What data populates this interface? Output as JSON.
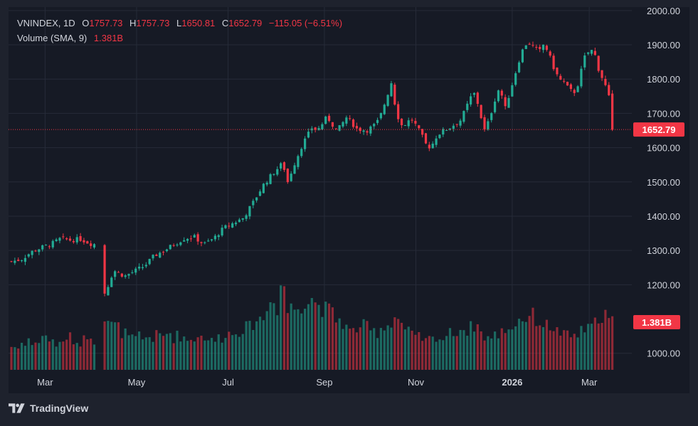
{
  "legend": {
    "symbol": "VNINDEX",
    "interval": "1D",
    "open_label": "O",
    "open": "1757.73",
    "high_label": "H",
    "high": "1757.73",
    "low_label": "L",
    "low": "1650.81",
    "close_label": "C",
    "close": "1652.79",
    "change": "−115.05 (−6.51%)",
    "volume_label": "Volume (SMA, 9)",
    "volume": "1.381B"
  },
  "badges": {
    "last_price": "1652.79",
    "last_volume": "1.381B"
  },
  "footer": {
    "brand": "TradingView"
  },
  "colors": {
    "up": "#22ab94",
    "down": "#f23645",
    "background": "#161a25",
    "outer": "#1e222d",
    "grid": "#262b38",
    "text": "#d1d4dc",
    "badge": "#f23645"
  },
  "chart_data": {
    "type": "candlestick",
    "title": "VNINDEX, 1D",
    "price_axis": {
      "range": [
        960,
        2010
      ],
      "ticks": [
        "2000.00",
        "1900.00",
        "1800.00",
        "1700.00",
        "1600.00",
        "1500.00",
        "1400.00",
        "1300.00",
        "1200.00",
        "1000.00"
      ]
    },
    "time_axis": {
      "range": [
        0,
        120
      ],
      "labels": [
        {
          "text": "Mar",
          "t": 7
        },
        {
          "text": "May",
          "t": 26
        },
        {
          "text": "Jul",
          "t": 45
        },
        {
          "text": "Sep",
          "t": 65
        },
        {
          "text": "Nov",
          "t": 84
        },
        {
          "text": "2026",
          "t": 104
        },
        {
          "text": "Mar",
          "t": 120
        }
      ]
    },
    "last_close": 1652.79,
    "series": [
      {
        "name": "VNINDEX",
        "description": "Approximate daily close path (t in trading-index units, y in index points)",
        "close_path": [
          {
            "t": 0,
            "y": 1268
          },
          {
            "t": 2,
            "y": 1274
          },
          {
            "t": 4,
            "y": 1295
          },
          {
            "t": 6,
            "y": 1308
          },
          {
            "t": 8,
            "y": 1318
          },
          {
            "t": 10,
            "y": 1335
          },
          {
            "t": 12,
            "y": 1330
          },
          {
            "t": 14,
            "y": 1333
          },
          {
            "t": 16,
            "y": 1320
          },
          {
            "t": 17,
            "y": 1318
          },
          {
            "t": 18,
            "y": 1275
          },
          {
            "t": 19,
            "y": 1165
          },
          {
            "t": 20,
            "y": 1220
          },
          {
            "t": 21,
            "y": 1240
          },
          {
            "t": 23,
            "y": 1225
          },
          {
            "t": 25,
            "y": 1240
          },
          {
            "t": 27,
            "y": 1255
          },
          {
            "t": 29,
            "y": 1285
          },
          {
            "t": 31,
            "y": 1300
          },
          {
            "t": 33,
            "y": 1318
          },
          {
            "t": 35,
            "y": 1335
          },
          {
            "t": 37,
            "y": 1340
          },
          {
            "t": 39,
            "y": 1318
          },
          {
            "t": 41,
            "y": 1335
          },
          {
            "t": 43,
            "y": 1365
          },
          {
            "t": 45,
            "y": 1380
          },
          {
            "t": 47,
            "y": 1395
          },
          {
            "t": 49,
            "y": 1440
          },
          {
            "t": 51,
            "y": 1490
          },
          {
            "t": 53,
            "y": 1525
          },
          {
            "t": 55,
            "y": 1555
          },
          {
            "t": 56,
            "y": 1500
          },
          {
            "t": 57,
            "y": 1540
          },
          {
            "t": 59,
            "y": 1610
          },
          {
            "t": 61,
            "y": 1660
          },
          {
            "t": 62,
            "y": 1650
          },
          {
            "t": 64,
            "y": 1690
          },
          {
            "t": 66,
            "y": 1648
          },
          {
            "t": 68,
            "y": 1690
          },
          {
            "t": 70,
            "y": 1655
          },
          {
            "t": 72,
            "y": 1650
          },
          {
            "t": 74,
            "y": 1670
          },
          {
            "t": 75,
            "y": 1700
          },
          {
            "t": 76,
            "y": 1745
          },
          {
            "t": 77,
            "y": 1790
          },
          {
            "t": 78,
            "y": 1705
          },
          {
            "t": 79,
            "y": 1665
          },
          {
            "t": 80,
            "y": 1670
          },
          {
            "t": 81,
            "y": 1685
          },
          {
            "t": 82,
            "y": 1665
          },
          {
            "t": 83,
            "y": 1640
          },
          {
            "t": 84,
            "y": 1610
          },
          {
            "t": 85,
            "y": 1600
          },
          {
            "t": 86,
            "y": 1630
          },
          {
            "t": 87,
            "y": 1645
          },
          {
            "t": 89,
            "y": 1660
          },
          {
            "t": 91,
            "y": 1680
          },
          {
            "t": 92,
            "y": 1710
          },
          {
            "t": 93,
            "y": 1745
          },
          {
            "t": 94,
            "y": 1760
          },
          {
            "t": 95,
            "y": 1700
          },
          {
            "t": 96,
            "y": 1645
          },
          {
            "t": 97,
            "y": 1690
          },
          {
            "t": 98,
            "y": 1740
          },
          {
            "t": 99,
            "y": 1780
          },
          {
            "t": 100,
            "y": 1710
          },
          {
            "t": 101,
            "y": 1760
          },
          {
            "t": 102,
            "y": 1810
          },
          {
            "t": 103,
            "y": 1860
          },
          {
            "t": 104,
            "y": 1900
          },
          {
            "t": 105,
            "y": 1905
          },
          {
            "t": 106,
            "y": 1890
          },
          {
            "t": 107,
            "y": 1880
          },
          {
            "t": 108,
            "y": 1905
          },
          {
            "t": 109,
            "y": 1870
          },
          {
            "t": 110,
            "y": 1830
          },
          {
            "t": 111,
            "y": 1800
          },
          {
            "t": 112,
            "y": 1790
          },
          {
            "t": 113,
            "y": 1770
          },
          {
            "t": 114,
            "y": 1760
          },
          {
            "t": 115,
            "y": 1790
          },
          {
            "t": 116,
            "y": 1860
          },
          {
            "t": 117,
            "y": 1880
          },
          {
            "t": 118,
            "y": 1885
          },
          {
            "t": 119,
            "y": 1830
          },
          {
            "t": 120,
            "y": 1795
          },
          {
            "t": 121,
            "y": 1757.73
          },
          {
            "t": 122,
            "y": 1652.79
          }
        ]
      },
      {
        "name": "Volume",
        "description": "Approximate daily volume in billions",
        "values": [
          0.6,
          0.55,
          0.7,
          0.8,
          0.65,
          0.75,
          0.9,
          0.7,
          0.8,
          0.65,
          0.7,
          0.85,
          0.75,
          0.7,
          0.8,
          0.9,
          0.75,
          1.2,
          1.4,
          1.3,
          1.15,
          1.1,
          0.95,
          0.85,
          0.8,
          0.9,
          0.75,
          0.85,
          0.8,
          0.9,
          0.85,
          0.95,
          0.8,
          0.9,
          0.85,
          0.75,
          0.8,
          0.9,
          0.85,
          0.8,
          0.75,
          0.85,
          0.8,
          0.95,
          0.9,
          1.0,
          1.05,
          1.1,
          1.2,
          1.3,
          1.35,
          1.5,
          1.95,
          1.4,
          2.2,
          1.5,
          1.6,
          1.65,
          1.7,
          1.8,
          1.9,
          1.7,
          1.6,
          1.55,
          1.45,
          1.3,
          1.2,
          1.1,
          1.0,
          1.05,
          1.15,
          1.1,
          1.0,
          0.95,
          1.1,
          1.15,
          1.25,
          1.35,
          1.2,
          1.0,
          0.9,
          0.85,
          0.8,
          0.75,
          0.8,
          0.85,
          0.8,
          0.9,
          0.95,
          1.0,
          1.05,
          1.0,
          1.1,
          1.15,
          0.95,
          0.85,
          0.8,
          0.9,
          1.0,
          1.05,
          1.1,
          1.2,
          1.3,
          1.35,
          1.4,
          1.3,
          1.2,
          1.15,
          1.1,
          1.0,
          0.95,
          0.9,
          0.85,
          0.9,
          1.0,
          1.05,
          1.1,
          1.2,
          1.4,
          1.45,
          1.3,
          1.381
        ]
      }
    ]
  }
}
